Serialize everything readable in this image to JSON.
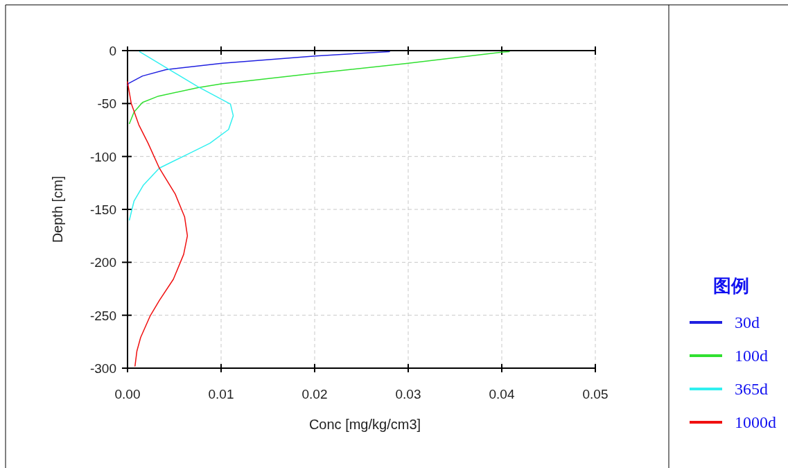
{
  "chart_data": {
    "type": "line",
    "xlabel": "Conc [mg/kg/cm3]",
    "ylabel": "Depth [cm]",
    "legend_title": "图例",
    "xlim": [
      0,
      0.05
    ],
    "ylim": [
      -300,
      0
    ],
    "xticks": [
      {
        "value": 0,
        "label": "0.00"
      },
      {
        "value": 0.01,
        "label": "0.01"
      },
      {
        "value": 0.02,
        "label": "0.02"
      },
      {
        "value": 0.03,
        "label": "0.03"
      },
      {
        "value": 0.04,
        "label": "0.04"
      },
      {
        "value": 0.05,
        "label": "0.05"
      }
    ],
    "yticks": [
      0,
      -50,
      -100,
      -150,
      -200,
      -250,
      -300
    ],
    "grid": true,
    "legend": "right",
    "series": [
      {
        "name": "30d",
        "color": "#2020e0",
        "x": [
          0.028,
          0.0201,
          0.0101,
          0.0041,
          0.0016,
          0.0001,
          0.0
        ],
        "values": [
          -1,
          -5,
          -12,
          -18,
          -24,
          -31,
          -33
        ]
      },
      {
        "name": "100d",
        "color": "#30e030",
        "x": [
          0.0408,
          0.04,
          0.03,
          0.02,
          0.01,
          0.0075,
          0.0033,
          0.0016,
          0.0007,
          0.0002
        ],
        "values": [
          -1,
          -1.5,
          -12,
          -21.5,
          -31.5,
          -35,
          -43,
          -49,
          -58,
          -69
        ]
      },
      {
        "name": "365d",
        "color": "#30f0f0",
        "x": [
          0.0013,
          0.0041,
          0.0075,
          0.011,
          0.0113,
          0.0108,
          0.0088,
          0.0064,
          0.0034,
          0.0017,
          0.0007,
          0.0002
        ],
        "values": [
          -1,
          -16,
          -34,
          -50.5,
          -61.5,
          -74.5,
          -87.5,
          -98,
          -111,
          -127,
          -142,
          -160
        ]
      },
      {
        "name": "1000d",
        "color": "#f01010",
        "x": [
          0.0,
          0.0004,
          0.0012,
          0.0022,
          0.0034,
          0.0051,
          0.0061,
          0.0064,
          0.006,
          0.0049,
          0.0034,
          0.0024,
          0.0014,
          0.001,
          0.0008
        ],
        "values": [
          -29.5,
          -50,
          -70,
          -87.5,
          -111,
          -135.5,
          -157,
          -175,
          -192.5,
          -216,
          -236,
          -251,
          -271,
          -284,
          -298
        ]
      }
    ]
  }
}
